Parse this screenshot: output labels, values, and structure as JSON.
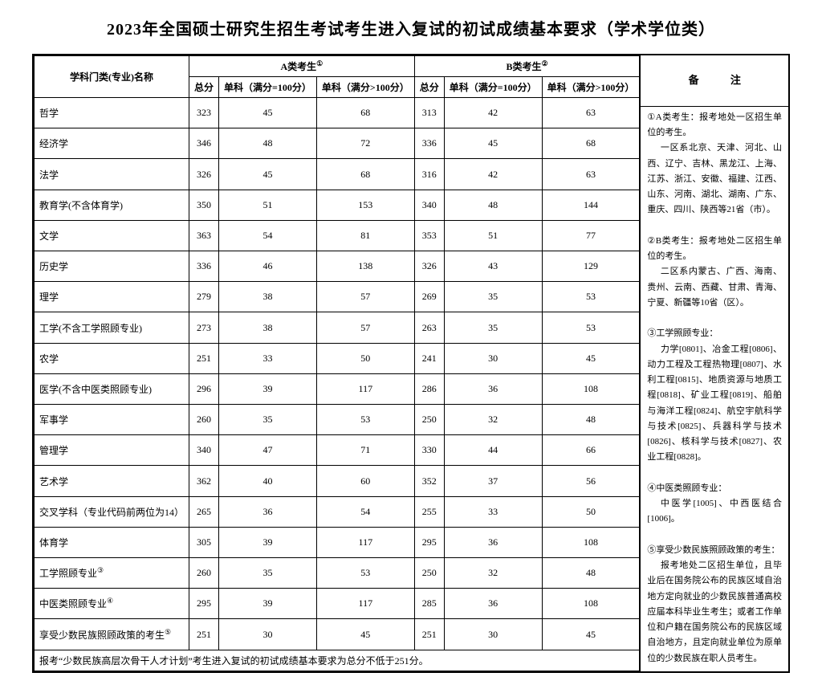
{
  "title": "2023年全国硕士研究生招生考试考生进入复试的初试成绩基本要求（学术学位类）",
  "headers": {
    "major": "学科门类(专业)名称",
    "groupA": "A类考生",
    "groupB": "B类考生",
    "supA": "①",
    "supB": "②",
    "total": "总分",
    "sub100": "单科（满分=100分）",
    "subOver100": "单科（满分>100分）",
    "notes": "备    注"
  },
  "rows": [
    {
      "name": "哲学",
      "a": [
        323,
        45,
        68
      ],
      "b": [
        313,
        42,
        63
      ]
    },
    {
      "name": "经济学",
      "a": [
        346,
        48,
        72
      ],
      "b": [
        336,
        45,
        68
      ]
    },
    {
      "name": "法学",
      "a": [
        326,
        45,
        68
      ],
      "b": [
        316,
        42,
        63
      ]
    },
    {
      "name": "教育学(不含体育学)",
      "a": [
        350,
        51,
        153
      ],
      "b": [
        340,
        48,
        144
      ]
    },
    {
      "name": "文学",
      "a": [
        363,
        54,
        81
      ],
      "b": [
        353,
        51,
        77
      ]
    },
    {
      "name": "历史学",
      "a": [
        336,
        46,
        138
      ],
      "b": [
        326,
        43,
        129
      ]
    },
    {
      "name": "理学",
      "a": [
        279,
        38,
        57
      ],
      "b": [
        269,
        35,
        53
      ]
    },
    {
      "name": "工学(不含工学照顾专业)",
      "a": [
        273,
        38,
        57
      ],
      "b": [
        263,
        35,
        53
      ]
    },
    {
      "name": "农学",
      "a": [
        251,
        33,
        50
      ],
      "b": [
        241,
        30,
        45
      ]
    },
    {
      "name": "医学(不含中医类照顾专业)",
      "a": [
        296,
        39,
        117
      ],
      "b": [
        286,
        36,
        108
      ]
    },
    {
      "name": "军事学",
      "a": [
        260,
        35,
        53
      ],
      "b": [
        250,
        32,
        48
      ]
    },
    {
      "name": "管理学",
      "a": [
        340,
        47,
        71
      ],
      "b": [
        330,
        44,
        66
      ]
    },
    {
      "name": "艺术学",
      "a": [
        362,
        40,
        60
      ],
      "b": [
        352,
        37,
        56
      ]
    },
    {
      "name": "交叉学科（专业代码前两位为14）",
      "a": [
        265,
        36,
        54
      ],
      "b": [
        255,
        33,
        50
      ]
    },
    {
      "name": "体育学",
      "a": [
        305,
        39,
        117
      ],
      "b": [
        295,
        36,
        108
      ]
    },
    {
      "name": "工学照顾专业",
      "sup": "③",
      "a": [
        260,
        35,
        53
      ],
      "b": [
        250,
        32,
        48
      ]
    },
    {
      "name": "中医类照顾专业",
      "sup": "④",
      "a": [
        295,
        39,
        117
      ],
      "b": [
        285,
        36,
        108
      ]
    },
    {
      "name": "享受少数民族照顾政策的考生",
      "sup": "⑤",
      "a": [
        251,
        30,
        45
      ],
      "b": [
        251,
        30,
        45
      ]
    }
  ],
  "footer": "报考“少数民族高层次骨干人才计划”考生进入复试的初试成绩基本要求为总分不低于251分。",
  "notes": {
    "n1_lead": "①A类考生：报考地处一区招生单位的考生。",
    "n1_body": "一区系北京、天津、河北、山西、辽宁、吉林、黑龙江、上海、江苏、浙江、安徽、福建、江西、山东、河南、湖北、湖南、广东、重庆、四川、陕西等21省（市）。",
    "n2_lead": "②B类考生：报考地处二区招生单位的考生。",
    "n2_body": "二区系内蒙古、广西、海南、贵州、云南、西藏、甘肃、青海、宁夏、新疆等10省（区）。",
    "n3_lead": "③工学照顾专业：",
    "n3_body": "力学[0801]、冶金工程[0806]、动力工程及工程热物理[0807]、水利工程[0815]、地质资源与地质工程[0818]、矿业工程[0819]、船舶与海洋工程[0824]、航空宇航科学与技术[0825]、兵器科学与技术[0826]、核科学与技术[0827]、农业工程[0828]。",
    "n4_lead": "④中医类照顾专业：",
    "n4_body": "中医学[1005]、中西医结合[1006]。",
    "n5_lead": "⑤享受少数民族照顾政策的考生：",
    "n5_body": "报考地处二区招生单位，且毕业后在国务院公布的民族区域自治地方定向就业的少数民族普通高校应届本科毕业生考生；或者工作单位和户籍在国务院公布的民族区域自治地方，且定向就业单位为原单位的少数民族在职人员考生。"
  }
}
